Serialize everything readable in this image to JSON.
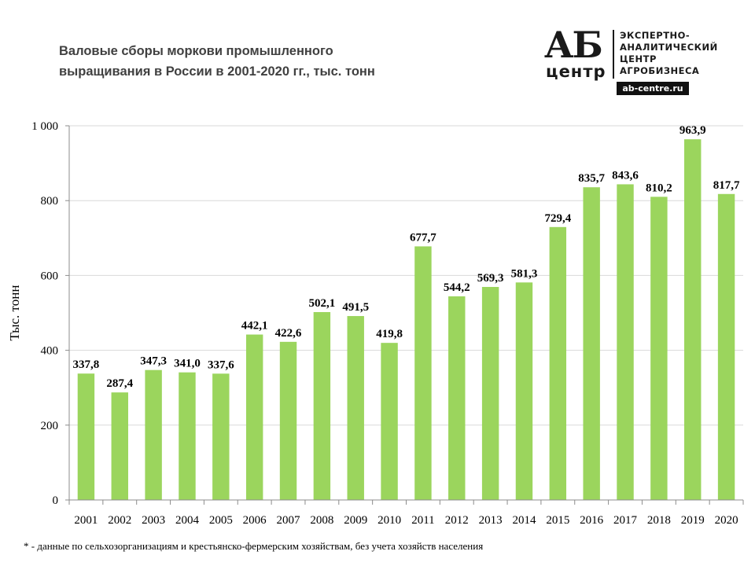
{
  "title": {
    "line1": "Валовые сборы моркови промышленного",
    "line2": "выращивания  в России в 2001-2020 гг., тыс. тонн"
  },
  "logo": {
    "mark_top": "АБ",
    "mark_bottom": "центр",
    "tagline": [
      "ЭКСПЕРТНО-",
      "АНАЛИТИЧЕСКИЙ",
      "ЦЕНТР",
      "АГРОБИЗНЕСА"
    ],
    "url": "ab-centre.ru"
  },
  "footnote": "* - данные по сельхозорганизациям и крестьянско-фермерским  хозяйствам,  без учета хозяйств  населения",
  "colors": {
    "bar": "#9bd55d",
    "grid": "#d9d9d9",
    "axis": "#8c8c8c"
  },
  "chart_data": {
    "type": "bar",
    "title": "Валовые сборы моркови промышленного выращивания  в России в 2001-2020 гг., тыс. тонн",
    "xlabel": "",
    "ylabel": "Тыс. тонн",
    "ylim": [
      0,
      1000
    ],
    "yticks": [
      0,
      200,
      400,
      600,
      800,
      1000
    ],
    "ytick_labels": [
      "0",
      "200",
      "400",
      "600",
      "800",
      "1 000"
    ],
    "grid": true,
    "legend": "none",
    "categories": [
      "2001",
      "2002",
      "2003",
      "2004",
      "2005",
      "2006",
      "2007",
      "2008",
      "2009",
      "2010",
      "2011",
      "2012",
      "2013",
      "2014",
      "2015",
      "2016",
      "2017",
      "2018",
      "2019",
      "2020"
    ],
    "values": [
      337.8,
      287.4,
      347.3,
      341.0,
      337.6,
      442.1,
      422.6,
      502.1,
      491.5,
      419.8,
      677.7,
      544.2,
      569.3,
      581.3,
      729.4,
      835.7,
      843.6,
      810.2,
      963.9,
      817.7
    ],
    "data_labels": [
      "337,8",
      "287,4",
      "347,3",
      "341,0",
      "337,6",
      "442,1",
      "422,6",
      "502,1",
      "491,5",
      "419,8",
      "677,7",
      "544,2",
      "569,3",
      "581,3",
      "729,4",
      "835,7",
      "843,6",
      "810,2",
      "963,9",
      "817,7"
    ]
  }
}
